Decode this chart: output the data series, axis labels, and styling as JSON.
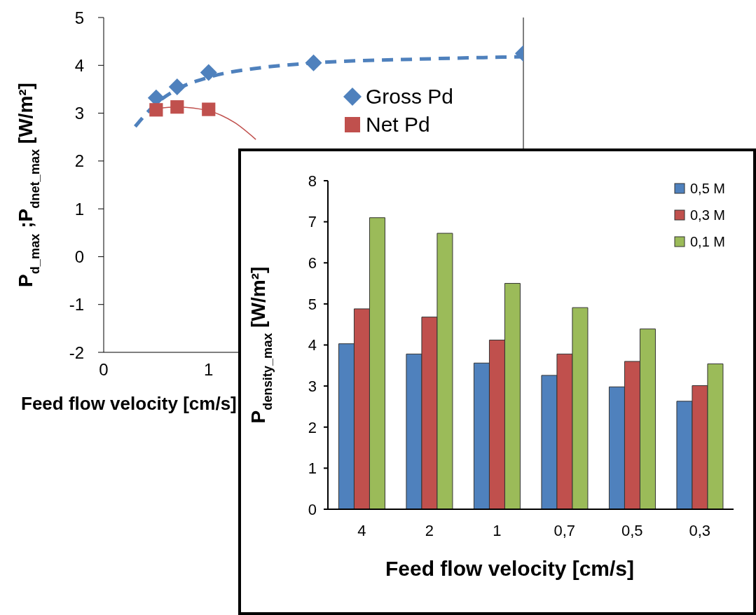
{
  "chart_data": [
    {
      "type": "line",
      "xlabel": "Feed flow velocity [cm/s]",
      "ylabel": "P$_{d_max}$ ;P$_{dnet_max}$ [W/m²]",
      "xlim": [
        0,
        4
      ],
      "xticks": [
        0,
        1
      ],
      "ylim": [
        -2,
        5
      ],
      "yticks": [
        -2,
        -1,
        0,
        1,
        2,
        3,
        4,
        5
      ],
      "legend": "right",
      "grid": false,
      "series": [
        {
          "name": "Gross Pd",
          "type": "scatter",
          "marker": "diamond",
          "color": "#4f81bd",
          "x": [
            0.5,
            0.7,
            1,
            2,
            4
          ],
          "values": [
            3.32,
            3.55,
            3.85,
            4.05,
            4.25
          ]
        },
        {
          "name": "Net Pd",
          "type": "scatter",
          "marker": "square",
          "color": "#c0504d",
          "x": [
            0.5,
            0.7,
            1
          ],
          "values": [
            3.07,
            3.13,
            3.08
          ]
        },
        {
          "type": "line",
          "color": "#4f81bd",
          "line_style": "dashed",
          "marker": "none",
          "x": [
            0.3,
            0.5,
            0.7,
            1,
            1.5,
            2,
            3,
            4
          ],
          "values": [
            2.72,
            3.2,
            3.5,
            3.75,
            3.95,
            4.05,
            4.13,
            4.18
          ]
        },
        {
          "type": "line",
          "color": "#c0504d",
          "line_style": "solid",
          "marker": "none",
          "x": [
            0.5,
            0.7,
            1,
            1.25,
            1.45
          ],
          "values": [
            3.1,
            3.13,
            3.05,
            2.8,
            2.45
          ]
        }
      ]
    },
    {
      "type": "bar",
      "xlabel": "Feed flow velocity [cm/s]",
      "ylabel": "P$_{density_max}$ [W/m²]",
      "categories": [
        "4",
        "2",
        "1",
        "0,7",
        "0,5",
        "0,3"
      ],
      "ylim": [
        0,
        8
      ],
      "yticks": [
        0,
        1,
        2,
        3,
        4,
        5,
        6,
        7,
        8
      ],
      "legend": "top right",
      "grid": false,
      "series": [
        {
          "name": "0,5 M",
          "color": "#4f81bd",
          "values": [
            4.03,
            3.78,
            3.56,
            3.26,
            2.98,
            2.63
          ]
        },
        {
          "name": "0,3 M",
          "color": "#c0504d",
          "values": [
            4.88,
            4.68,
            4.12,
            3.78,
            3.6,
            3.01
          ]
        },
        {
          "name": "0,1 M",
          "color": "#9bbb59",
          "values": [
            7.1,
            6.72,
            5.5,
            4.91,
            4.39,
            3.54
          ]
        }
      ]
    }
  ]
}
